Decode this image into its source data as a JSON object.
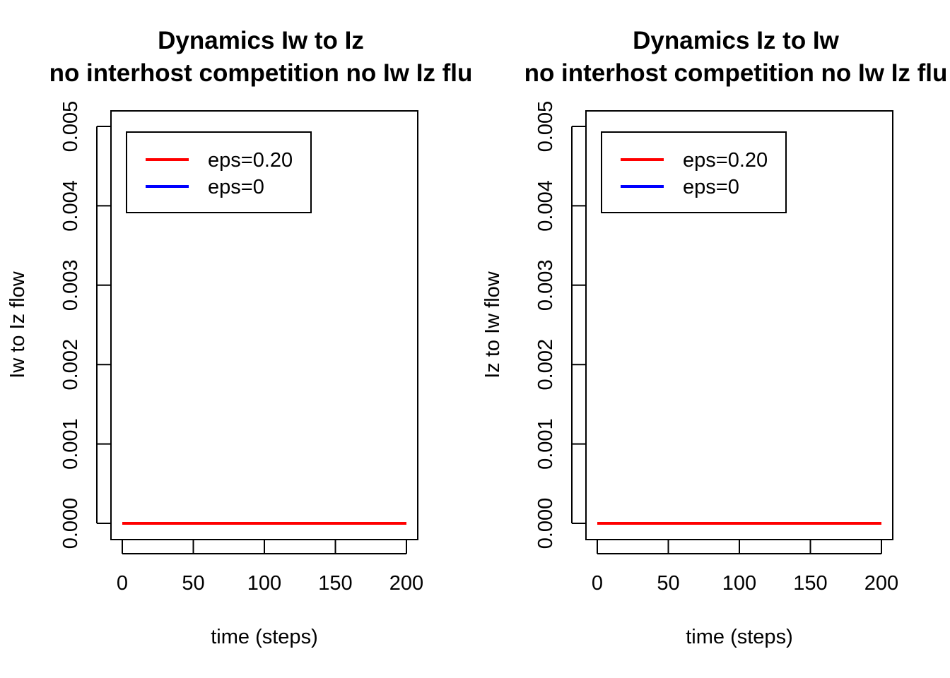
{
  "chart_data": [
    {
      "type": "line",
      "title": "Dynamics Iw to Iz",
      "subtitle": "no interhost competition no Iw Iz flu",
      "xlabel": "time (steps)",
      "ylabel": "Iw to Iz flow",
      "xlim": [
        0,
        200
      ],
      "ylim": [
        0,
        0.005
      ],
      "xticks": [
        "0",
        "50",
        "100",
        "150",
        "200"
      ],
      "yticks": [
        "0.000",
        "0.001",
        "0.002",
        "0.003",
        "0.004",
        "0.005"
      ],
      "legend": {
        "position": "top-left",
        "entries": [
          "eps=0.20",
          "eps=0"
        ]
      },
      "series": [
        {
          "name": "eps=0",
          "color": "#0000ff",
          "x": [
            0,
            200
          ],
          "y": [
            0,
            0
          ]
        },
        {
          "name": "eps=0.20",
          "color": "#ff0000",
          "x": [
            0,
            200
          ],
          "y": [
            0,
            0
          ]
        }
      ],
      "grid": false
    },
    {
      "type": "line",
      "title": "Dynamics Iz to Iw",
      "subtitle": "no interhost competition no Iw Iz flu",
      "xlabel": "time (steps)",
      "ylabel": "Iz to Iw flow",
      "xlim": [
        0,
        200
      ],
      "ylim": [
        0,
        0.005
      ],
      "xticks": [
        "0",
        "50",
        "100",
        "150",
        "200"
      ],
      "yticks": [
        "0.000",
        "0.001",
        "0.002",
        "0.003",
        "0.004",
        "0.005"
      ],
      "legend": {
        "position": "top-left",
        "entries": [
          "eps=0.20",
          "eps=0"
        ]
      },
      "series": [
        {
          "name": "eps=0",
          "color": "#0000ff",
          "x": [
            0,
            200
          ],
          "y": [
            0,
            0
          ]
        },
        {
          "name": "eps=0.20",
          "color": "#ff0000",
          "x": [
            0,
            200
          ],
          "y": [
            0,
            0
          ]
        }
      ],
      "grid": false
    }
  ]
}
